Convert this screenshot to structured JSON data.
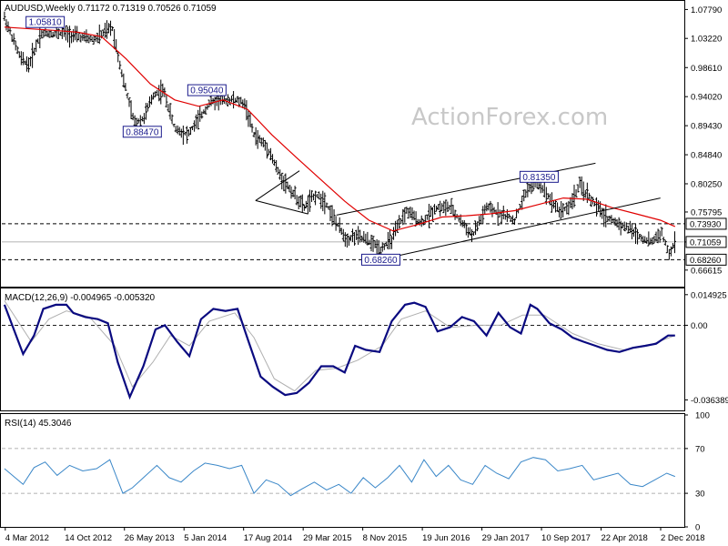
{
  "watermark": "ActionForex.com",
  "colors": {
    "bars": "#000000",
    "sma": "#e00000",
    "macd": "#0a0a80",
    "signal": "#b0b0b0",
    "rsi": "#3a87c8",
    "label_border": "#1a1a8c",
    "level_box": "#000000"
  },
  "chart_data": [
    {
      "type": "ohlc",
      "title": "AUDUSD,Weekly  0.71172 0.71319 0.70526 0.71059",
      "ylim": [
        0.64,
        1.09
      ],
      "y_ticks": [
        "1.07790",
        "1.03220",
        "0.98610",
        "0.94020",
        "0.89430",
        "0.84840",
        "0.80250",
        "0.75795",
        "0.71059",
        "0.66615"
      ],
      "y_tick_values": [
        1.0779,
        1.0322,
        0.9861,
        0.9402,
        0.8943,
        0.8484,
        0.8025,
        0.75795,
        0.71059,
        0.66615
      ],
      "level_boxes": [
        {
          "label": "0.73930",
          "value": 0.7393
        },
        {
          "label": "0.71059",
          "value": 0.71059
        },
        {
          "label": "0.68260",
          "value": 0.6826
        }
      ],
      "annotations": [
        {
          "label": "1.05810",
          "date": "2012-08-01",
          "value": 1.0581
        },
        {
          "label": "0.95040",
          "date": "2014-04-01",
          "value": 0.9504
        },
        {
          "label": "0.88470",
          "date": "2013-08-01",
          "value": 0.8847
        },
        {
          "label": "0.81350",
          "date": "2017-09-01",
          "value": 0.8135
        },
        {
          "label": "0.68260",
          "date": "2016-01-15",
          "value": 0.6826
        }
      ],
      "horizontal_lines": [
        0.7393,
        0.6826
      ],
      "trendlines": [
        {
          "from": [
            "2015-08-01",
            0.753
          ],
          "to": [
            "2018-04-01",
            0.835
          ]
        },
        {
          "from": [
            "2016-01-15",
            0.683
          ],
          "to": [
            "2018-12-01",
            0.78
          ]
        },
        {
          "from": [
            "2014-10-01",
            0.776
          ],
          "to": [
            "2015-03-15",
            0.823
          ]
        },
        {
          "from": [
            "2014-10-01",
            0.776
          ],
          "to": [
            "2015-04-15",
            0.755
          ]
        }
      ],
      "sma_series": {
        "dates": [
          "2012-03-01",
          "2012-09-01",
          "2012-12-01",
          "2013-03-01",
          "2013-06-01",
          "2013-09-01",
          "2013-12-01",
          "2014-03-01",
          "2014-06-01",
          "2014-09-01",
          "2014-12-01",
          "2015-03-01",
          "2015-06-01",
          "2015-09-01",
          "2015-12-01",
          "2016-03-01",
          "2016-06-01",
          "2016-09-01",
          "2016-12-01",
          "2017-03-01",
          "2017-06-01",
          "2017-09-01",
          "2017-12-01",
          "2018-03-01",
          "2018-06-01",
          "2018-09-01",
          "2018-12-01",
          "2019-01-25"
        ],
        "values": [
          1.05,
          1.045,
          1.042,
          1.035,
          1.0,
          0.96,
          0.935,
          0.925,
          0.935,
          0.92,
          0.88,
          0.845,
          0.81,
          0.775,
          0.745,
          0.728,
          0.738,
          0.75,
          0.752,
          0.755,
          0.76,
          0.77,
          0.78,
          0.778,
          0.765,
          0.755,
          0.745,
          0.735
        ]
      },
      "price_series": {
        "dates": [
          "2012-03-01",
          "2012-05-01",
          "2012-06-01",
          "2012-07-15",
          "2012-09-01",
          "2012-10-15",
          "2012-12-01",
          "2013-02-01",
          "2013-04-10",
          "2013-05-20",
          "2013-07-01",
          "2013-08-05",
          "2013-09-15",
          "2013-10-20",
          "2013-12-01",
          "2014-01-20",
          "2014-03-10",
          "2014-04-10",
          "2014-05-20",
          "2014-07-10",
          "2014-08-20",
          "2014-09-25",
          "2014-11-15",
          "2015-01-01",
          "2015-02-15",
          "2015-04-01",
          "2015-05-15",
          "2015-06-20",
          "2015-08-01",
          "2015-09-07",
          "2015-10-10",
          "2015-11-15",
          "2016-01-15",
          "2016-02-25",
          "2016-04-20",
          "2016-06-15",
          "2016-08-10",
          "2016-10-01",
          "2016-12-25",
          "2017-02-15",
          "2017-04-10",
          "2017-06-01",
          "2017-07-20",
          "2017-09-01",
          "2017-10-10",
          "2017-11-15",
          "2017-12-20",
          "2018-02-01",
          "2018-03-20",
          "2018-05-10",
          "2018-06-25",
          "2018-08-10",
          "2018-09-10",
          "2018-10-25",
          "2018-12-05",
          "2019-01-03",
          "2019-01-25"
        ],
        "values": [
          1.065,
          1.0,
          0.99,
          1.04,
          1.04,
          1.04,
          1.035,
          1.03,
          1.05,
          0.97,
          0.9,
          0.905,
          0.945,
          0.95,
          0.89,
          0.88,
          0.91,
          0.93,
          0.935,
          0.935,
          0.93,
          0.88,
          0.86,
          0.815,
          0.79,
          0.765,
          0.785,
          0.775,
          0.74,
          0.715,
          0.72,
          0.715,
          0.7,
          0.715,
          0.76,
          0.74,
          0.765,
          0.765,
          0.72,
          0.765,
          0.755,
          0.745,
          0.795,
          0.805,
          0.78,
          0.76,
          0.765,
          0.8,
          0.775,
          0.75,
          0.74,
          0.73,
          0.72,
          0.71,
          0.725,
          0.69,
          0.711
        ]
      },
      "x_ticks": [
        "4 Mar 2012",
        "14 Oct 2012",
        "26 May 2013",
        "5 Jan 2014",
        "17 Aug 2014",
        "29 Mar 2015",
        "8 Nov 2015",
        "19 Jun 2016",
        "29 Jan 2017",
        "10 Sep 2017",
        "22 Apr 2018",
        "2 Dec 2018"
      ],
      "x_tick_dates": [
        "2012-03-04",
        "2012-10-14",
        "2013-05-26",
        "2014-01-05",
        "2014-08-17",
        "2015-03-29",
        "2015-11-08",
        "2016-06-19",
        "2017-01-29",
        "2017-09-10",
        "2018-04-22",
        "2018-12-02"
      ]
    },
    {
      "type": "line",
      "title": "MACD(12,26,9) -0.004965 -0.005320",
      "ylim": [
        -0.0415,
        0.0175
      ],
      "y_ticks": [
        "0.014925",
        "0.00",
        "-0.036389"
      ],
      "y_tick_values": [
        0.014925,
        0.0,
        -0.036389
      ],
      "series": [
        {
          "name": "MACD",
          "x": [
            "2012-03-01",
            "2012-05-10",
            "2012-06-20",
            "2012-07-25",
            "2012-09-10",
            "2012-10-20",
            "2012-11-15",
            "2012-12-30",
            "2013-02-15",
            "2013-03-25",
            "2013-05-01",
            "2013-06-15",
            "2013-08-05",
            "2013-09-20",
            "2013-10-25",
            "2013-12-10",
            "2014-01-25",
            "2014-03-10",
            "2014-04-25",
            "2014-06-10",
            "2014-07-25",
            "2014-09-05",
            "2014-10-20",
            "2014-12-05",
            "2015-01-20",
            "2015-03-05",
            "2015-04-20",
            "2015-06-05",
            "2015-07-20",
            "2015-09-01",
            "2015-10-10",
            "2015-11-20",
            "2016-01-10",
            "2016-02-25",
            "2016-04-15",
            "2016-05-20",
            "2016-07-01",
            "2016-08-15",
            "2016-10-01",
            "2016-11-15",
            "2016-12-30",
            "2017-02-15",
            "2017-04-01",
            "2017-05-15",
            "2017-06-25",
            "2017-07-30",
            "2017-08-25",
            "2017-10-10",
            "2017-11-25",
            "2018-01-05",
            "2018-02-15",
            "2018-04-01",
            "2018-05-15",
            "2018-06-30",
            "2018-08-20",
            "2018-10-05",
            "2018-11-15",
            "2018-12-30",
            "2019-01-25"
          ],
          "values": [
            0.01,
            -0.014,
            -0.005,
            0.008,
            0.01,
            0.01,
            0.006,
            0.004,
            0.003,
            0.001,
            -0.018,
            -0.035,
            -0.02,
            -0.002,
            0.0,
            -0.008,
            -0.015,
            0.003,
            0.008,
            0.007,
            0.008,
            -0.008,
            -0.025,
            -0.03,
            -0.034,
            -0.033,
            -0.028,
            -0.02,
            -0.02,
            -0.023,
            -0.01,
            -0.012,
            -0.013,
            0.002,
            0.01,
            0.011,
            0.009,
            -0.003,
            -0.001,
            0.004,
            0.002,
            -0.005,
            0.006,
            -0.001,
            -0.004,
            0.01,
            0.008,
            0.001,
            -0.002,
            -0.006,
            -0.008,
            -0.01,
            -0.012,
            -0.013,
            -0.011,
            -0.01,
            -0.009,
            -0.005,
            -0.005
          ]
        },
        {
          "name": "Signal",
          "x": [
            "2012-03-01",
            "2012-06-10",
            "2012-08-15",
            "2012-10-20",
            "2013-01-15",
            "2013-04-20",
            "2013-06-25",
            "2013-09-10",
            "2013-11-15",
            "2014-01-25",
            "2014-04-10",
            "2014-07-15",
            "2014-09-25",
            "2014-12-10",
            "2015-02-25",
            "2015-05-15",
            "2015-08-01",
            "2015-10-20",
            "2016-01-20",
            "2016-04-01",
            "2016-07-01",
            "2016-10-01",
            "2017-01-10",
            "2017-04-10",
            "2017-07-01",
            "2017-09-20",
            "2018-01-05",
            "2018-04-10",
            "2018-07-15",
            "2018-10-15",
            "2019-01-25"
          ],
          "values": [
            0.012,
            -0.008,
            0.003,
            0.007,
            0.004,
            -0.01,
            -0.03,
            -0.018,
            -0.005,
            -0.01,
            0.002,
            0.006,
            -0.006,
            -0.026,
            -0.032,
            -0.022,
            -0.021,
            -0.017,
            -0.01,
            0.003,
            0.007,
            -0.001,
            0.0,
            0.0,
            0.005,
            0.005,
            -0.004,
            -0.009,
            -0.012,
            -0.01,
            -0.005
          ]
        }
      ]
    },
    {
      "type": "line",
      "title": "RSI(14) 45.3046",
      "ylim": [
        0,
        100
      ],
      "y_ticks": [
        "100",
        "70",
        "30",
        "0"
      ],
      "y_tick_values": [
        100,
        70,
        30,
        0
      ],
      "reference_lines": [
        70,
        30
      ],
      "series": [
        {
          "name": "RSI",
          "x": [
            "2012-03-01",
            "2012-05-10",
            "2012-06-20",
            "2012-08-01",
            "2012-09-15",
            "2012-11-01",
            "2012-12-20",
            "2013-02-10",
            "2013-04-01",
            "2013-05-20",
            "2013-06-25",
            "2013-08-10",
            "2013-09-25",
            "2013-11-10",
            "2013-12-25",
            "2014-02-10",
            "2014-03-25",
            "2014-05-10",
            "2014-06-25",
            "2014-08-10",
            "2014-09-25",
            "2014-11-10",
            "2014-12-25",
            "2015-02-10",
            "2015-03-25",
            "2015-05-10",
            "2015-06-25",
            "2015-08-10",
            "2015-09-25",
            "2015-11-10",
            "2015-12-25",
            "2016-02-10",
            "2016-03-25",
            "2016-05-10",
            "2016-06-25",
            "2016-08-10",
            "2016-09-25",
            "2016-11-10",
            "2016-12-25",
            "2017-02-10",
            "2017-03-25",
            "2017-05-10",
            "2017-06-25",
            "2017-08-10",
            "2017-09-25",
            "2017-11-10",
            "2017-12-25",
            "2018-02-10",
            "2018-03-25",
            "2018-05-10",
            "2018-06-25",
            "2018-08-10",
            "2018-09-25",
            "2018-11-10",
            "2018-12-25",
            "2019-01-25"
          ],
          "values": [
            52,
            38,
            53,
            58,
            46,
            55,
            50,
            52,
            60,
            30,
            35,
            45,
            55,
            44,
            40,
            50,
            57,
            55,
            52,
            55,
            30,
            42,
            38,
            28,
            34,
            40,
            33,
            38,
            30,
            44,
            35,
            44,
            55,
            40,
            60,
            45,
            55,
            42,
            38,
            55,
            48,
            43,
            58,
            62,
            60,
            50,
            52,
            55,
            42,
            45,
            48,
            38,
            36,
            42,
            48,
            45
          ]
        }
      ]
    }
  ]
}
